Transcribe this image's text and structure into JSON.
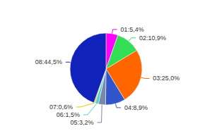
{
  "chart_data": {
    "type": "pie",
    "categories": [
      "01:5,4%",
      "02:10,9%",
      "03:25,0%",
      "04:8,9%",
      "05:3,2%",
      "06:1,5%",
      "07:0,6%",
      "08:44,5%"
    ],
    "values": [
      5.4,
      10.9,
      25.0,
      8.9,
      3.2,
      1.5,
      0.6,
      44.5
    ],
    "colors": [
      "#ff00ff",
      "#33dd55",
      "#ff6600",
      "#3355cc",
      "#7788aa",
      "#55ccdd",
      "#ddcc00",
      "#1122bb"
    ]
  }
}
